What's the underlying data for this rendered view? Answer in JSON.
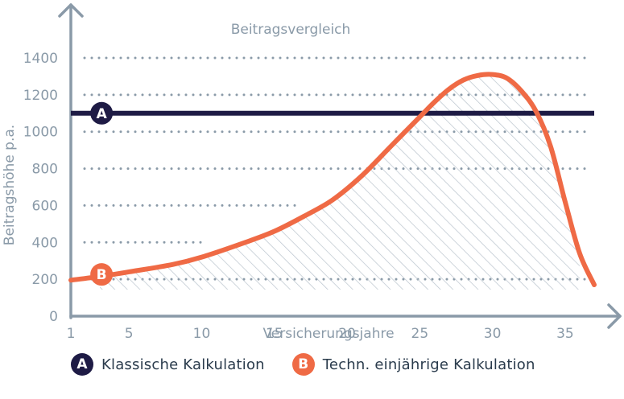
{
  "chart_data": {
    "type": "line",
    "title": "Beitragsvergleich",
    "xlabel": "Versicherungsjahre",
    "ylabel": "Beitragshöhe p.a.",
    "xlim": [
      1,
      37
    ],
    "ylim": [
      0,
      1400
    ],
    "xticks": [
      1,
      5,
      10,
      15,
      20,
      25,
      30,
      35
    ],
    "yticks": [
      0,
      200,
      400,
      600,
      800,
      1000,
      1200,
      1400
    ],
    "grid": "horizontal dotted",
    "series": [
      {
        "badge": "A",
        "name": "Klassische Kalkulation",
        "color": "#1e1b45",
        "x": [
          1,
          37
        ],
        "y": [
          1100,
          1100
        ]
      },
      {
        "badge": "B",
        "name": "Techn. einjährige Kalkulation",
        "color": "#ef6a45",
        "x": [
          1,
          3,
          5,
          8,
          10,
          13,
          15,
          17,
          19,
          21,
          23,
          25,
          26,
          27,
          28,
          29,
          30,
          31,
          32,
          33,
          34,
          35,
          36,
          37
        ],
        "y": [
          195,
          215,
          240,
          280,
          320,
          400,
          460,
          540,
          630,
          760,
          920,
          1080,
          1160,
          1230,
          1280,
          1305,
          1310,
          1290,
          1220,
          1110,
          920,
          620,
          340,
          170
        ]
      }
    ],
    "shaded_region": "hatched area under curve B, from x≈3 to x≈36"
  },
  "legend": {
    "a_badge": "A",
    "a_label": "Klassische Kalkulation",
    "b_badge": "B",
    "b_label": "Techn. einjährige Kalkulation"
  },
  "colors": {
    "axis": "#8a9aa8",
    "grid": "#8a9aa8",
    "series_a": "#1e1b45",
    "series_b": "#ef6a45",
    "hatch": "#b9c3cc"
  }
}
